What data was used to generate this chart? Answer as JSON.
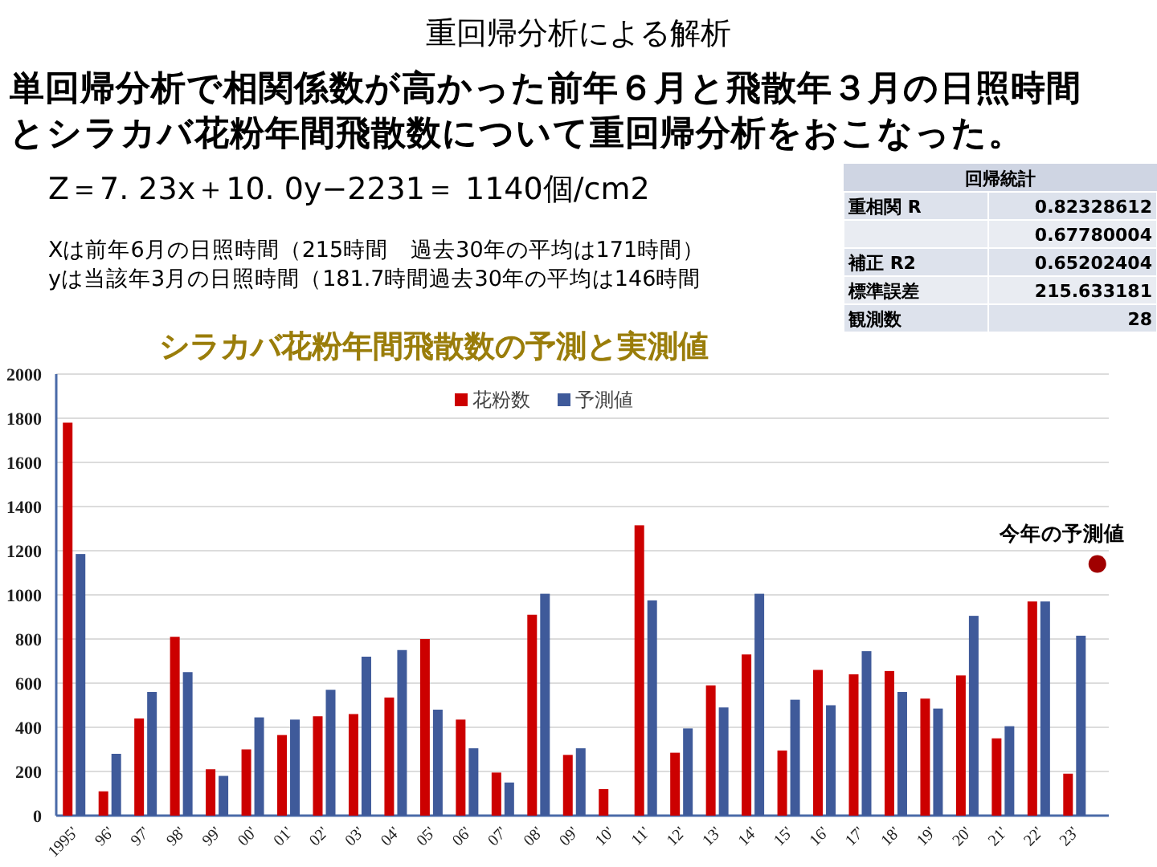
{
  "chart_data": {
    "type": "bar",
    "title": "重回帰分析による解析",
    "subtitle": "単回帰分析で相関係数が高かった前年６月と飛散年３月の日照時間",
    "annotations": [
      "Z＝7. 23x＋10. 0y−2231＝ 1140個/cm2",
      "Xは前年6月の日照時間（215時間　過去30年の平均は171時間）",
      "yは当該年3月の日照時間（181.7時間過去30年の平均は146時間",
      "シラカバ花粉年間飛散数の予測と実測値",
      "とシラカバ花粉年間飛散数について重回帰分析をおこなった。",
      "回帰統計",
      "重相関 R",
      "0.82328612",
      "0.67780004",
      "補正 R2",
      "0.65202404",
      "標準誤差",
      "215.633181",
      "観測数",
      "28"
    ],
    "categories": [
      "1995'",
      "96'",
      "97'",
      "98'",
      "99'",
      "00'",
      "01'",
      "02'",
      "03'",
      "04'",
      "05'",
      "06'",
      "07'",
      "08'",
      "09'",
      "10'",
      "11'",
      "12'",
      "13'",
      "14'",
      "15'",
      "16'",
      "17'",
      "18'",
      "19'",
      "20'",
      "21'",
      "22'",
      "23'",
      null
    ],
    "series": [
      {
        "name": "花粉数",
        "color": "#cc0000",
        "values": [
          1780,
          110,
          440,
          810,
          210,
          300,
          365,
          450,
          460,
          535,
          800,
          435,
          195,
          910,
          275,
          120,
          1315,
          285,
          590,
          730,
          295,
          660,
          640,
          655,
          530,
          635,
          350,
          970,
          190,
          null
        ]
      },
      {
        "name": "予測値",
        "color": "#3f5a9a",
        "values": [
          1185,
          280,
          560,
          650,
          180,
          445,
          435,
          570,
          720,
          750,
          480,
          305,
          150,
          1005,
          305,
          null,
          975,
          395,
          490,
          1005,
          525,
          500,
          745,
          560,
          485,
          905,
          405,
          970,
          815,
          null
        ]
      },
      {
        "name": "今年の予測値",
        "type": "scatter",
        "marker": "circle",
        "color": "#a00000",
        "values": [
          null,
          null,
          null,
          null,
          null,
          null,
          null,
          null,
          null,
          null,
          null,
          null,
          null,
          null,
          null,
          null,
          null,
          null,
          null,
          null,
          null,
          null,
          null,
          null,
          null,
          null,
          null,
          null,
          null,
          1140
        ]
      }
    ],
    "ylim": [
      0,
      2000
    ],
    "yticks": [
      0,
      200,
      400,
      600,
      800,
      1000,
      1200,
      1400,
      1600,
      1800,
      2000
    ],
    "grid": "y",
    "legend": "top"
  }
}
